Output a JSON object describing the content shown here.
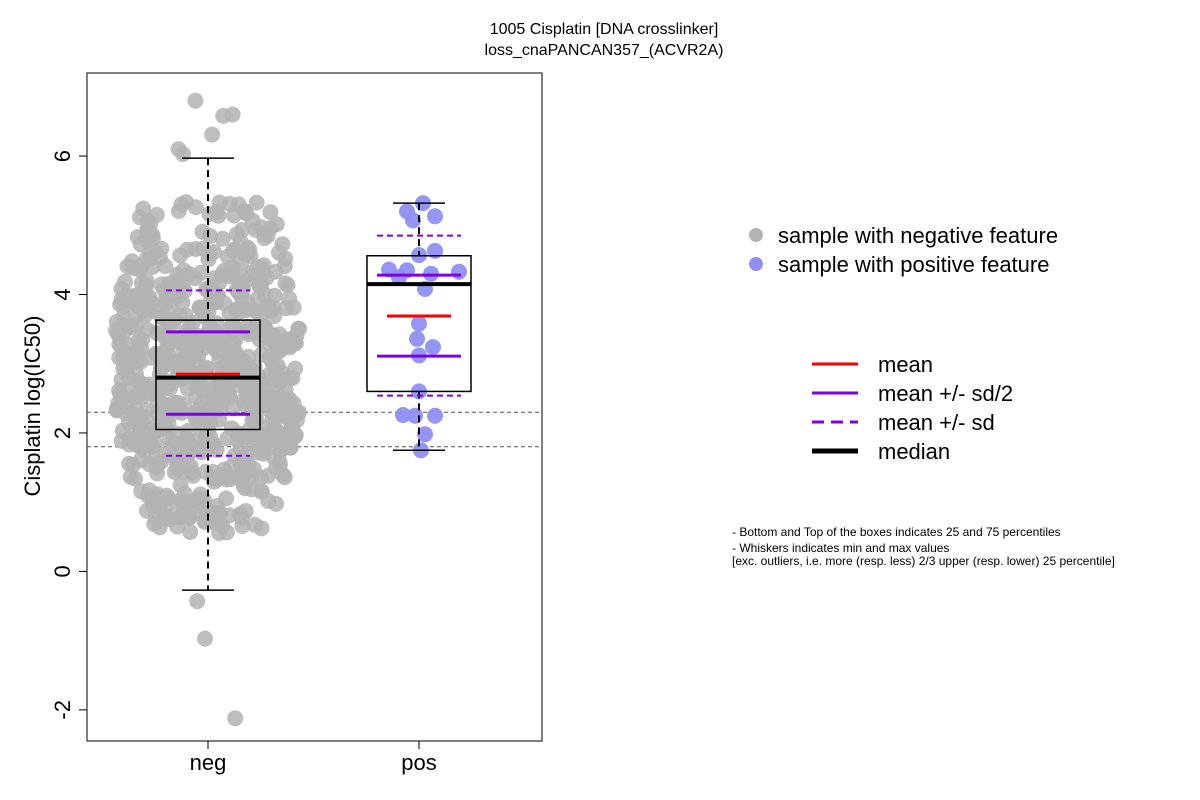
{
  "title": {
    "line1": "1005 Cisplatin [DNA crosslinker]",
    "line2": "loss_cnaPANCAN357_(ACVR2A)"
  },
  "legend": {
    "neg_label": "sample with negative feature",
    "pos_label": "sample with positive feature",
    "mean_label": "mean",
    "sd2_label": "mean +/- sd/2",
    "sd_label": "mean +/- sd",
    "median_label": "median"
  },
  "notes": {
    "line1": "- Bottom and Top of the boxes indicates 25 and 75 percentiles",
    "line2": "- Whiskers indicates min and max values",
    "line3": "[exc. outliers, i.e. more (resp. less) 2/3 upper (resp. lower) 25 percentile]"
  },
  "colors": {
    "neg_points": "#b3b3b3",
    "pos_points": "#8f8ff5",
    "mean": "#ff0000",
    "sd": "#8000e0",
    "median": "#000000"
  },
  "chart_data": {
    "type": "box",
    "title": "1005 Cisplatin [DNA crosslinker] loss_cnaPANCAN357_(ACVR2A)",
    "xlabel": "",
    "ylabel": "Cisplatin log(IC50)",
    "categories": [
      "neg",
      "pos"
    ],
    "ylim": [
      -2.45,
      7.2
    ],
    "yticks": [
      -2,
      0,
      2,
      4,
      6
    ],
    "reference_lines": [
      2.3,
      1.8
    ],
    "groups": [
      {
        "name": "neg",
        "q1": 2.05,
        "median": 2.8,
        "q3": 3.63,
        "whisker_low": -0.27,
        "whisker_high": 5.97,
        "mean": 2.85,
        "mean_minus_sd2": 2.27,
        "mean_plus_sd2": 3.46,
        "mean_minus_sd": 1.67,
        "mean_plus_sd": 4.06,
        "n_points": 700,
        "outliers": [
          6.8,
          6.58,
          6.6,
          6.31,
          6.1,
          6.03,
          -0.43,
          -0.97,
          -2.12
        ]
      },
      {
        "name": "pos",
        "q1": 2.6,
        "median": 4.15,
        "q3": 4.56,
        "whisker_low": 1.75,
        "whisker_high": 5.32,
        "mean": 3.69,
        "mean_minus_sd2": 3.11,
        "mean_plus_sd2": 4.28,
        "mean_minus_sd": 2.54,
        "mean_plus_sd": 4.85,
        "points": [
          5.32,
          5.2,
          5.13,
          5.07,
          4.63,
          4.57,
          4.36,
          4.35,
          4.33,
          4.3,
          4.25,
          4.08,
          3.58,
          3.36,
          3.24,
          3.12,
          2.6,
          2.26,
          2.25,
          2.25,
          1.98,
          1.75
        ]
      }
    ],
    "legend_placement": "right"
  }
}
